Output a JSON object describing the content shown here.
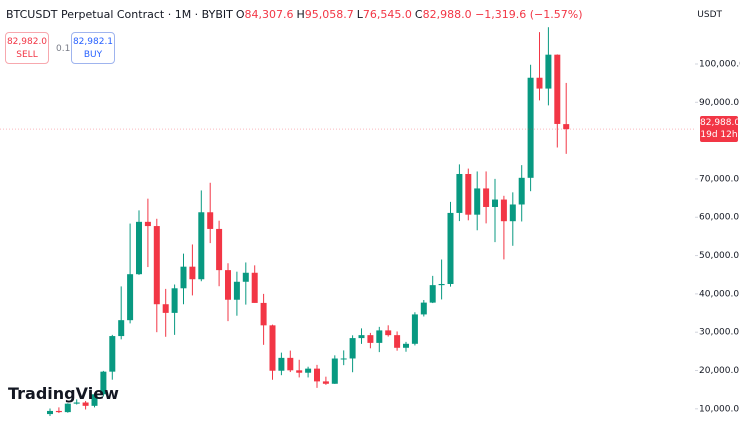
{
  "header": {
    "symbol": "BTCUSDT Perpetual Contract · 1M · BYBIT",
    "ohlc": [
      {
        "label": "O",
        "value": "84,307.6"
      },
      {
        "label": "H",
        "value": "95,058.7"
      },
      {
        "label": "L",
        "value": "76,545.0"
      },
      {
        "label": "C",
        "value": "82,988.0"
      }
    ],
    "change": "−1,319.6 (−1.57%)"
  },
  "trade": {
    "sell_price": "82,982.0",
    "sell_label": "SELL",
    "spread": "0.1",
    "buy_price": "82,982.1",
    "buy_label": "BUY"
  },
  "currency": "USDT",
  "price_tag": {
    "price": "82,988.0",
    "countdown": "19d 12h"
  },
  "brand": "TradingView",
  "chart_data": {
    "type": "candlestick",
    "up_color": "#089981",
    "down_color": "#f23645",
    "open": [
      8630,
      9450,
      9140,
      11350,
      11650,
      10780,
      13800,
      19700,
      28990,
      33140,
      45140,
      58800,
      57700,
      37300,
      35040,
      41460,
      47100,
      43820,
      61300,
      56950,
      46200,
      38470,
      43160,
      45510,
      37640,
      31790,
      19940,
      23300,
      20050,
      19420,
      20490,
      17160,
      16540,
      23130,
      23140,
      28460,
      29230,
      27210,
      30470,
      29230,
      25930,
      26970,
      34640,
      37720,
      42280,
      42580,
      61130,
      71290,
      60670,
      67520,
      62680,
      64620,
      58970,
      63330,
      70290,
      96410,
      93580,
      102430,
      84307.6
    ],
    "high": [
      10080,
      10380,
      11440,
      12470,
      12060,
      14100,
      19900,
      29300,
      41950,
      58350,
      61780,
      64850,
      59600,
      41300,
      42450,
      50500,
      52900,
      67000,
      69000,
      59100,
      47990,
      45800,
      48200,
      47450,
      40000,
      31990,
      24670,
      25200,
      22800,
      20990,
      21480,
      18390,
      23960,
      25250,
      29190,
      31000,
      29820,
      31390,
      31800,
      30200,
      27480,
      35200,
      38400,
      44700,
      48970,
      64000,
      73800,
      72700,
      71950,
      71960,
      70000,
      65600,
      66500,
      73600,
      99800,
      108300,
      109600,
      102500,
      95058.7
    ],
    "low": [
      8120,
      8900,
      8980,
      11120,
      9830,
      10370,
      13200,
      17600,
      28130,
      32300,
      44950,
      47000,
      30000,
      28800,
      29300,
      37300,
      39600,
      43300,
      53250,
      42000,
      32900,
      34300,
      37200,
      37700,
      26700,
      17600,
      18780,
      19600,
      18200,
      18190,
      15480,
      16260,
      16500,
      21400,
      19550,
      26940,
      25800,
      24800,
      28860,
      25170,
      24900,
      26550,
      34100,
      37600,
      38550,
      41900,
      59000,
      59200,
      56600,
      58400,
      53500,
      49000,
      52550,
      58900,
      66800,
      90500,
      89200,
      78200,
      76545
    ],
    "close": [
      9450,
      9140,
      11350,
      11650,
      10780,
      13800,
      19700,
      28990,
      33140,
      45140,
      58800,
      57700,
      37300,
      35040,
      41460,
      47100,
      43820,
      61300,
      56950,
      46200,
      38470,
      43160,
      45510,
      37640,
      31790,
      19940,
      23300,
      20050,
      19420,
      20490,
      17160,
      16540,
      23130,
      23140,
      28460,
      29230,
      27210,
      30470,
      29230,
      25930,
      26970,
      34640,
      37720,
      42280,
      42580,
      61130,
      71290,
      60670,
      67520,
      62680,
      64620,
      58970,
      63330,
      70290,
      96410,
      93580,
      102430,
      84350,
      82988
    ],
    "ylim": [
      6300,
      116700
    ],
    "yticks": [
      {
        "value": 10000,
        "label": "10,000.0"
      },
      {
        "value": 20000,
        "label": "20,000.0"
      },
      {
        "value": 30000,
        "label": "30,000.0"
      },
      {
        "value": 40000,
        "label": "40,000.0"
      },
      {
        "value": 50000,
        "label": "50,000.0"
      },
      {
        "value": 60000,
        "label": "60,000.0"
      },
      {
        "value": 70000,
        "label": "70,000.0"
      },
      {
        "value": 90000,
        "label": "90,000.0"
      },
      {
        "value": 100000,
        "label": "100,000.0"
      }
    ],
    "last_price_line": true
  }
}
